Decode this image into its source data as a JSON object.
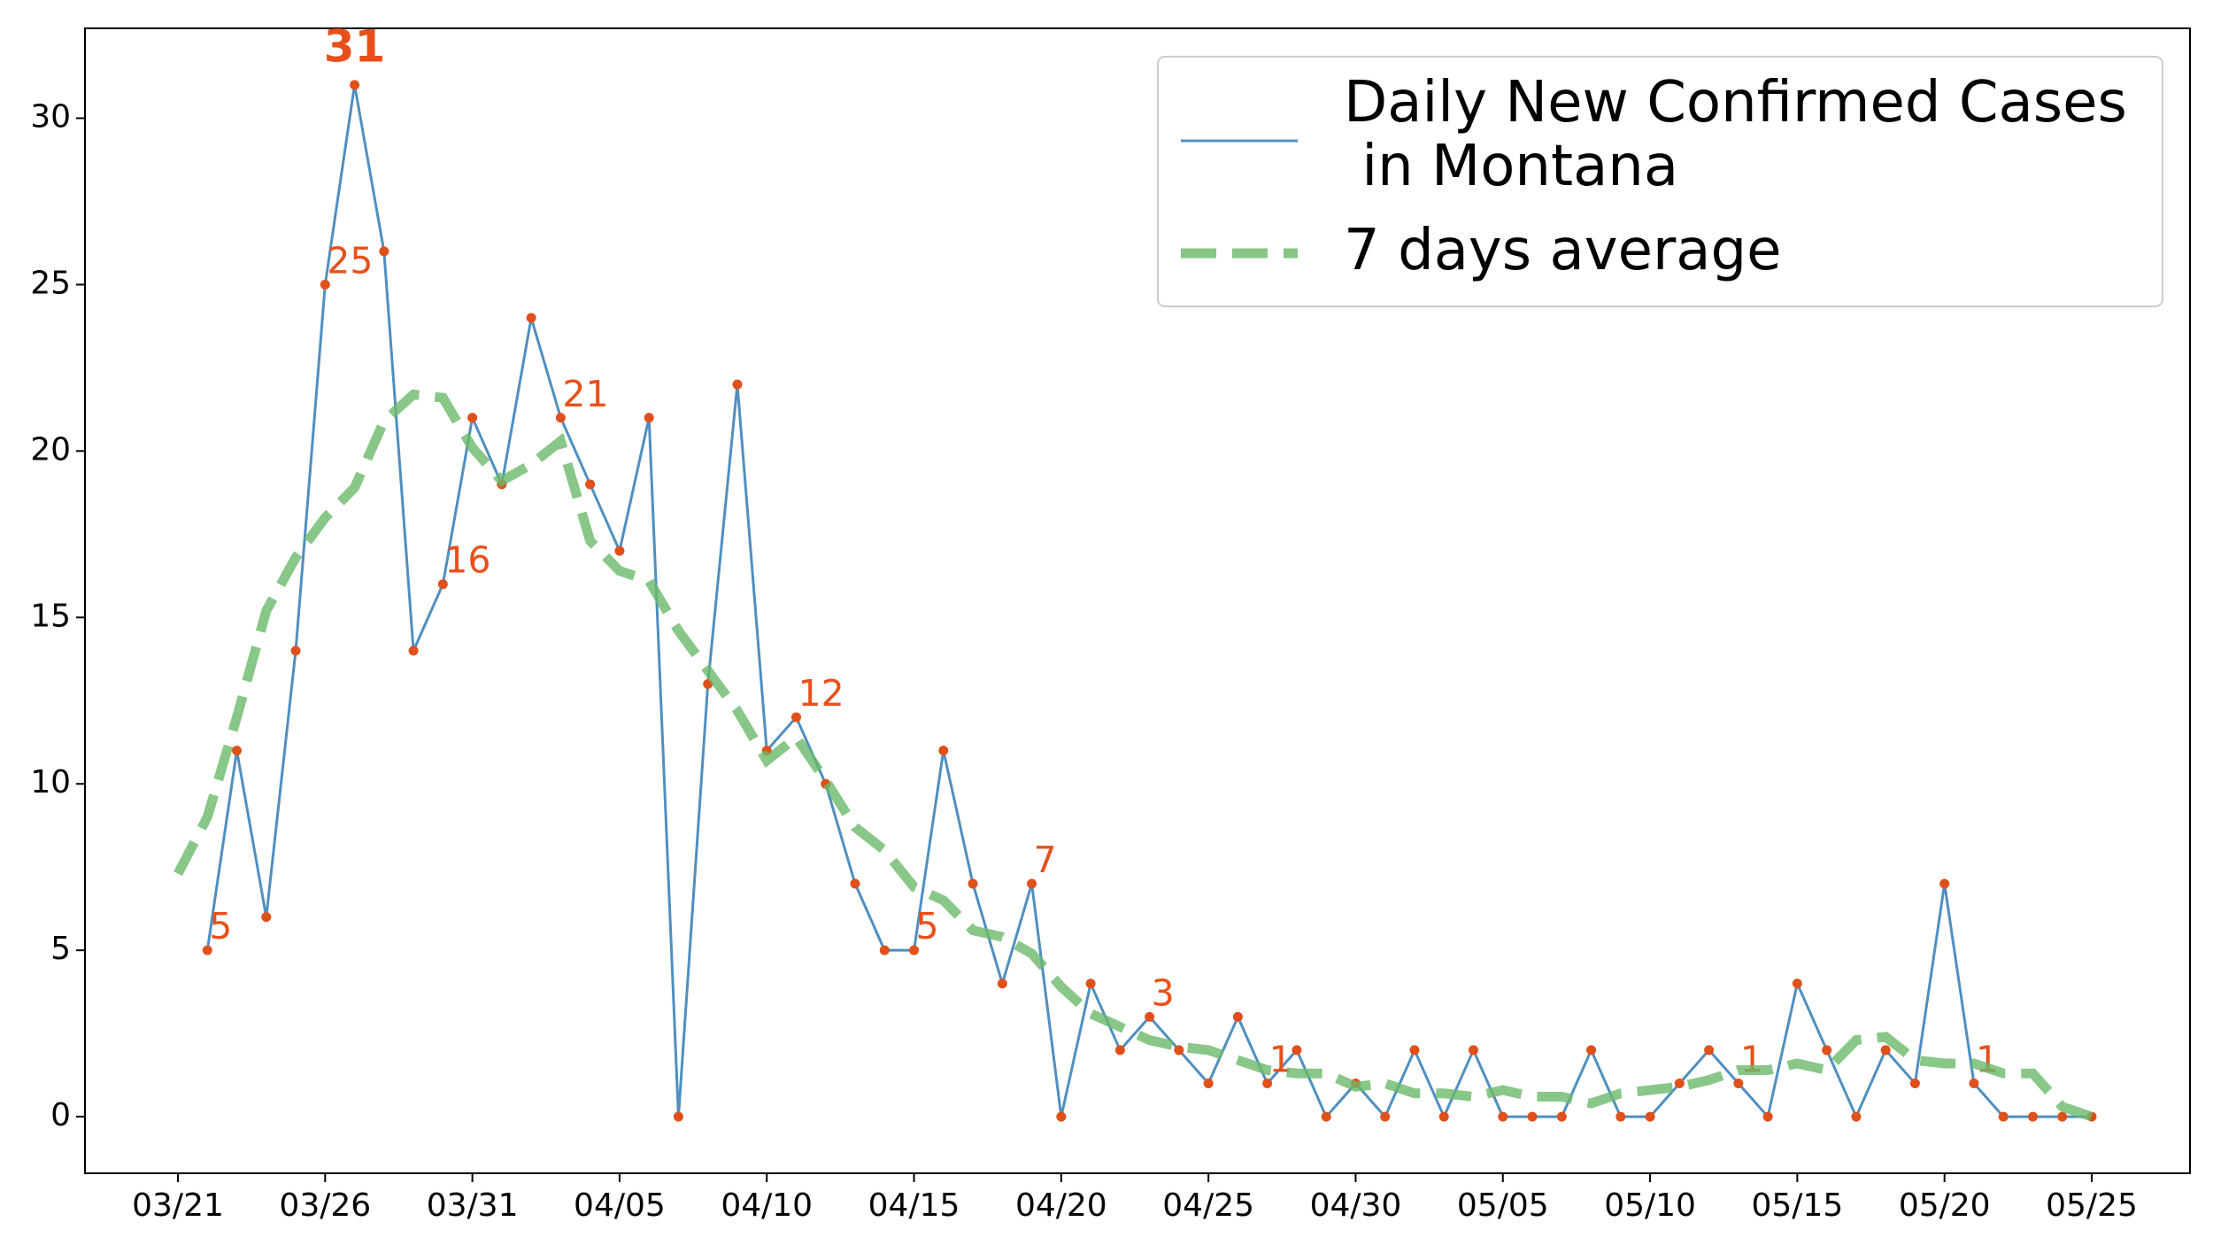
{
  "chart_data": {
    "type": "line",
    "categories": [
      "03/21",
      null,
      null,
      null,
      null,
      "03/26",
      null,
      null,
      null,
      null,
      "03/31",
      null,
      null,
      null,
      null,
      "04/05",
      null,
      null,
      null,
      null,
      "04/10",
      null,
      null,
      null,
      null,
      "04/15",
      null,
      null,
      null,
      null,
      "04/20",
      null,
      null,
      null,
      null,
      "04/25",
      null,
      null,
      null,
      null,
      "04/30",
      null,
      null,
      null,
      null,
      "05/05",
      null,
      null,
      null,
      null,
      "05/10",
      null,
      null,
      null,
      null,
      "05/15",
      null,
      null,
      null,
      null,
      "05/20",
      null,
      null,
      null,
      null,
      "05/25"
    ],
    "series": [
      {
        "name": "Daily New Confirmed Cases\n in Montana",
        "color": "#4f8fc0",
        "marker_color": "#e0501b",
        "values": [
          null,
          5,
          11,
          6,
          14,
          25,
          31,
          26,
          14,
          16,
          21,
          19,
          24,
          21,
          19,
          17,
          21,
          0,
          13,
          22,
          11,
          12,
          10,
          7,
          5,
          5,
          11,
          7,
          4,
          7,
          0,
          4,
          2,
          3,
          2,
          1,
          3,
          1,
          2,
          0,
          1,
          0,
          2,
          0,
          2,
          0,
          0,
          0,
          2,
          0,
          0,
          1,
          2,
          1,
          0,
          4,
          2,
          0,
          2,
          1,
          7,
          1,
          0,
          0,
          0,
          0
        ],
        "value_labels": [
          null,
          "5",
          null,
          null,
          null,
          "25",
          "31",
          null,
          null,
          "16",
          null,
          null,
          null,
          "21",
          null,
          null,
          null,
          null,
          null,
          null,
          null,
          "12",
          null,
          null,
          null,
          "5",
          null,
          null,
          null,
          "7",
          null,
          null,
          null,
          "3",
          null,
          null,
          null,
          "1",
          null,
          null,
          null,
          null,
          null,
          null,
          null,
          null,
          null,
          null,
          null,
          null,
          null,
          null,
          null,
          "1",
          null,
          null,
          null,
          null,
          null,
          null,
          null,
          "1",
          null,
          null,
          null,
          null
        ]
      },
      {
        "name": "7 days average",
        "color": "#6ab96a",
        "dashed": true,
        "values": [
          7.3,
          9.0,
          12,
          15.2,
          16.8,
          18.0,
          18.9,
          20.9,
          21.7,
          21.6,
          20.1,
          19.1,
          19.6,
          20.3,
          17.3,
          16.4,
          16.1,
          14.6,
          13.4,
          12.2,
          10.7,
          11.4,
          10.1,
          8.7,
          8.0,
          6.9,
          6.5,
          5.6,
          5.4,
          4.9,
          3.9,
          3.1,
          2.7,
          2.3,
          2.1,
          2.0,
          1.7,
          1.4,
          1.3,
          1.3,
          0.9,
          1.0,
          0.7,
          0.7,
          0.6,
          0.8,
          0.6,
          0.6,
          0.4,
          0.7,
          0.8,
          0.9,
          1.1,
          1.4,
          1.4,
          1.6,
          1.4,
          2.3,
          2.4,
          1.7,
          1.6,
          1.6,
          1.3,
          1.3,
          0.3,
          0.0
        ]
      }
    ],
    "ylim": [
      -1.7,
      32.7
    ],
    "yticks": [
      0,
      5,
      10,
      15,
      20,
      25,
      30
    ],
    "legend": "upper right",
    "grid": false
  }
}
